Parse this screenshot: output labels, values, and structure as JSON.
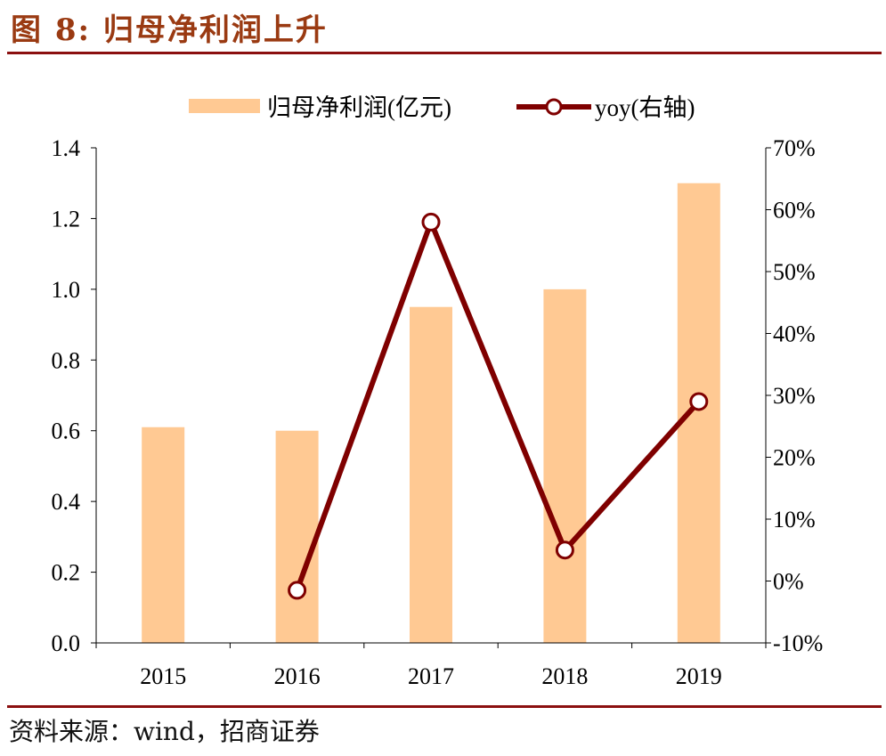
{
  "title": "图 8:  归母净利润上升",
  "source": "资料来源：wind，招商证券",
  "colors": {
    "bar": "#FFC993",
    "line": "#7F0000",
    "title": "#9A3A12",
    "rule": "#8B1010"
  },
  "chart_data": {
    "type": "bar+line",
    "categories": [
      "2015",
      "2016",
      "2017",
      "2018",
      "2019"
    ],
    "series": [
      {
        "name": "归母净利润(亿元)",
        "type": "bar",
        "axis": "left",
        "values": [
          0.61,
          0.6,
          0.95,
          1.0,
          1.3
        ]
      },
      {
        "name": "yoy(右轴)",
        "type": "line",
        "axis": "right",
        "values": [
          null,
          -1.5,
          58.0,
          5.0,
          29.0
        ]
      }
    ],
    "left_axis": {
      "ylim": [
        0,
        1.4
      ],
      "ticks": [
        "0.0",
        "0.2",
        "0.4",
        "0.6",
        "0.8",
        "1.0",
        "1.2",
        "1.4"
      ]
    },
    "right_axis": {
      "ylim": [
        -10,
        70
      ],
      "ticks": [
        "-10%",
        "0%",
        "10%",
        "20%",
        "30%",
        "40%",
        "50%",
        "60%",
        "70%"
      ]
    },
    "legend_placement": "top-center",
    "grid": false
  }
}
